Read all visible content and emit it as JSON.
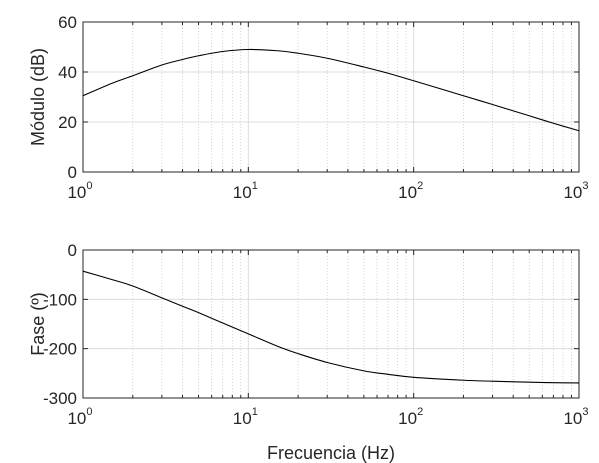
{
  "chart_data": [
    {
      "type": "line",
      "xscale": "log",
      "xlim": [
        1,
        1000
      ],
      "ylim": [
        0,
        60
      ],
      "ylabel": "Módulo (dB)",
      "xlabel": "",
      "grid": true,
      "x_ticks": [
        {
          "base": "10",
          "exp": "0"
        },
        {
          "base": "10",
          "exp": "1"
        },
        {
          "base": "10",
          "exp": "2"
        },
        {
          "base": "10",
          "exp": "3"
        }
      ],
      "y_ticks": [
        "0",
        "20",
        "40",
        "60"
      ],
      "series": [
        {
          "x": [
            1,
            1.5,
            2,
            3,
            4,
            5,
            7,
            10,
            15,
            20,
            30,
            50,
            70,
            100,
            200,
            300,
            500,
            700,
            1000
          ],
          "y": [
            30.5,
            35.5,
            38.5,
            42.8,
            45.0,
            46.5,
            48.2,
            49.0,
            48.5,
            47.5,
            45.5,
            42.0,
            39.5,
            36.5,
            30.5,
            27.0,
            22.5,
            19.5,
            16.5
          ],
          "color": "#000000"
        }
      ]
    },
    {
      "type": "line",
      "xscale": "log",
      "xlim": [
        1,
        1000
      ],
      "ylim": [
        -300,
        0
      ],
      "ylabel": "Fase (º)",
      "xlabel": "Frecuencia (Hz)",
      "grid": true,
      "x_ticks": [
        {
          "base": "10",
          "exp": "0"
        },
        {
          "base": "10",
          "exp": "1"
        },
        {
          "base": "10",
          "exp": "2"
        },
        {
          "base": "10",
          "exp": "3"
        }
      ],
      "y_ticks": [
        "-300",
        "-200",
        "-100",
        "0"
      ],
      "series": [
        {
          "x": [
            1,
            1.5,
            2,
            3,
            4,
            5,
            7,
            10,
            15,
            20,
            30,
            50,
            70,
            100,
            200,
            300,
            500,
            700,
            1000
          ],
          "y": [
            -43,
            -60,
            -73,
            -97,
            -114,
            -127,
            -148,
            -170,
            -195,
            -210,
            -228,
            -245,
            -252,
            -258,
            -264,
            -266,
            -268,
            -269,
            -269.5
          ],
          "color": "#000000"
        }
      ]
    }
  ]
}
